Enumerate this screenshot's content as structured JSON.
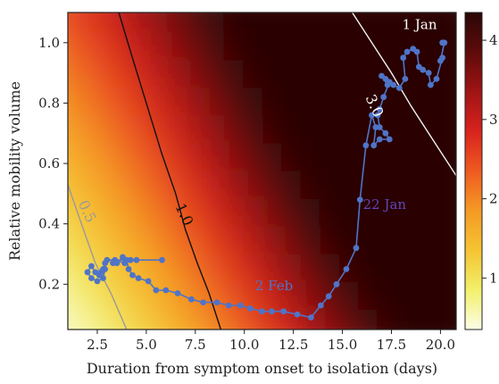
{
  "chart_data": {
    "type": "heatmap",
    "title": "",
    "xlabel": "Duration from symptom onset to isolation (days)",
    "ylabel": "Relative mobility volume",
    "xlim": [
      1.0,
      20.8
    ],
    "ylim": [
      0.05,
      1.1
    ],
    "xticks": [
      2.5,
      5.0,
      7.5,
      10.0,
      12.5,
      15.0,
      17.5,
      20.0
    ],
    "xtick_labels": [
      "2.5",
      "5.0",
      "7.5",
      "10.0",
      "12.5",
      "15.0",
      "17.5",
      "20.0"
    ],
    "yticks": [
      0.2,
      0.4,
      0.6,
      0.8,
      1.0
    ],
    "ytick_labels": [
      "0.2",
      "0.4",
      "0.6",
      "0.8",
      "1.0"
    ],
    "colorbar": {
      "range": [
        0.35,
        4.35
      ],
      "ticks": [
        1,
        2,
        3,
        4
      ],
      "tick_labels": [
        "1",
        "2",
        "3",
        "4"
      ],
      "colormap": [
        "#fdfde8",
        "#f2f06a",
        "#f5c432",
        "#f59a25",
        "#ef5a21",
        "#d8231e",
        "#a01414",
        "#5e0b0b",
        "#2a0606"
      ]
    },
    "contours": [
      {
        "label": "0.5",
        "color": "#9a9a9a",
        "points": [
          [
            1.0,
            0.53
          ],
          [
            1.8,
            0.38
          ],
          [
            2.4,
            0.27
          ],
          [
            3.2,
            0.17
          ],
          [
            4.0,
            0.05
          ]
        ],
        "label_at": [
          1.95,
          0.44
        ]
      },
      {
        "label": "1.0",
        "color": "#111111",
        "points": [
          [
            3.6,
            1.1
          ],
          [
            4.2,
            0.97
          ],
          [
            5.0,
            0.8
          ],
          [
            5.8,
            0.63
          ],
          [
            6.5,
            0.5
          ],
          [
            7.0,
            0.38
          ],
          [
            7.6,
            0.27
          ],
          [
            8.2,
            0.17
          ],
          [
            8.8,
            0.05
          ]
        ],
        "label_at": [
          6.9,
          0.43
        ]
      },
      {
        "label": "3.0",
        "color": "#f2f2f2",
        "points": [
          [
            15.5,
            1.1
          ],
          [
            16.5,
            1.0
          ],
          [
            17.5,
            0.9
          ],
          [
            18.5,
            0.79
          ],
          [
            19.5,
            0.69
          ],
          [
            20.8,
            0.56
          ]
        ],
        "label_at": [
          16.6,
          0.79
        ]
      }
    ],
    "series": [
      {
        "color": "#4f74c7",
        "points": [
          [
            20.1,
            1.0
          ],
          [
            20.2,
            1.0
          ],
          [
            20.0,
            0.94
          ],
          [
            20.1,
            0.95
          ],
          [
            19.8,
            0.88
          ],
          [
            19.5,
            0.86
          ],
          [
            19.4,
            0.9
          ],
          [
            19.1,
            0.91
          ],
          [
            18.9,
            0.92
          ],
          [
            18.8,
            0.97
          ],
          [
            18.6,
            0.98
          ],
          [
            18.3,
            0.97
          ],
          [
            18.1,
            0.95
          ],
          [
            18.2,
            0.88
          ],
          [
            17.9,
            0.85
          ],
          [
            17.6,
            0.86
          ],
          [
            17.3,
            0.86
          ],
          [
            17.0,
            0.89
          ],
          [
            17.2,
            0.88
          ],
          [
            17.4,
            0.87
          ],
          [
            17.1,
            0.82
          ],
          [
            16.9,
            0.78
          ],
          [
            16.8,
            0.76
          ],
          [
            16.9,
            0.72
          ],
          [
            17.2,
            0.7
          ],
          [
            17.4,
            0.68
          ],
          [
            16.9,
            0.68
          ],
          [
            16.6,
            0.66
          ],
          [
            16.7,
            0.72
          ],
          [
            16.5,
            0.76
          ],
          [
            16.2,
            0.66
          ],
          [
            15.9,
            0.48
          ],
          [
            15.7,
            0.32
          ],
          [
            15.2,
            0.25
          ],
          [
            14.7,
            0.2
          ],
          [
            14.3,
            0.16
          ],
          [
            13.9,
            0.13
          ],
          [
            13.4,
            0.09
          ],
          [
            12.7,
            0.1
          ],
          [
            12.0,
            0.11
          ],
          [
            11.4,
            0.11
          ],
          [
            10.9,
            0.11
          ],
          [
            10.3,
            0.12
          ],
          [
            9.8,
            0.13
          ],
          [
            9.2,
            0.13
          ],
          [
            8.6,
            0.14
          ],
          [
            7.9,
            0.14
          ],
          [
            7.3,
            0.15
          ],
          [
            6.6,
            0.17
          ],
          [
            6.0,
            0.18
          ],
          [
            5.5,
            0.18
          ],
          [
            5.1,
            0.21
          ],
          [
            4.6,
            0.22
          ],
          [
            4.3,
            0.23
          ],
          [
            4.1,
            0.25
          ],
          [
            4.0,
            0.28
          ],
          [
            3.8,
            0.29
          ],
          [
            3.5,
            0.27
          ],
          [
            3.3,
            0.27
          ],
          [
            3.4,
            0.28
          ],
          [
            3.9,
            0.27
          ],
          [
            4.2,
            0.28
          ],
          [
            4.5,
            0.28
          ],
          [
            5.8,
            0.28
          ],
          [
            3.0,
            0.28
          ],
          [
            2.8,
            0.25
          ],
          [
            2.6,
            0.23
          ],
          [
            2.4,
            0.24
          ],
          [
            2.2,
            0.26
          ],
          [
            2.0,
            0.24
          ],
          [
            2.2,
            0.22
          ],
          [
            2.5,
            0.21
          ],
          [
            2.8,
            0.22
          ],
          [
            2.9,
            0.25
          ],
          [
            2.9,
            0.27
          ],
          [
            2.7,
            0.24
          ]
        ]
      }
    ],
    "annotations": [
      {
        "text": "1 Jan",
        "color": "#ffffff",
        "at": [
          18.05,
          1.045
        ]
      },
      {
        "text": "22 Jan",
        "color": "#6045b8",
        "at": [
          16.05,
          0.45
        ]
      },
      {
        "text": "2 Feb",
        "color": "#4f74c7",
        "at": [
          10.55,
          0.18
        ]
      }
    ]
  }
}
